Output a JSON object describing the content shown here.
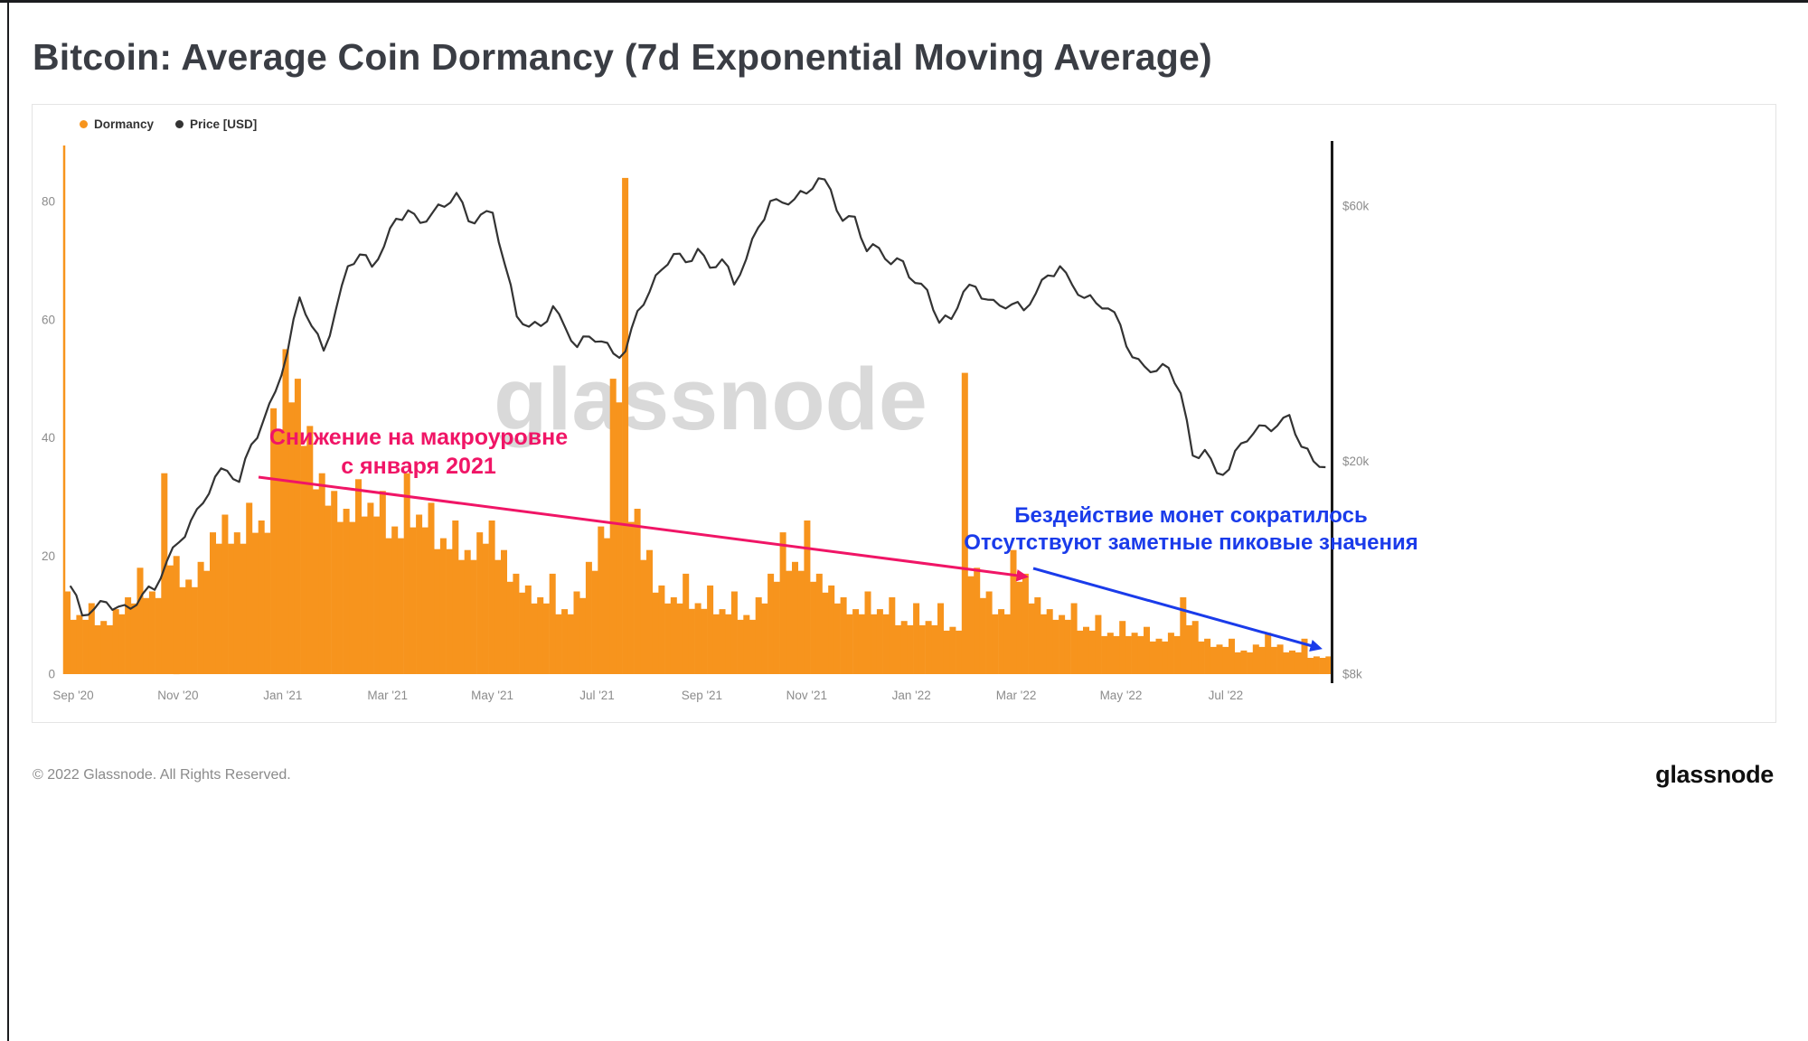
{
  "chart_data": {
    "type": "bar+line",
    "title": "Bitcoin: Average Coin Dormancy (7d Exponential Moving Average)",
    "x_tick_labels": [
      "Sep '20",
      "Nov '20",
      "Jan '21",
      "Mar '21",
      "May '21",
      "Jul '21",
      "Sep '21",
      "Nov '21",
      "Jan '22",
      "Mar '22",
      "May '22",
      "Jul '22"
    ],
    "x_resolution": "weekly samples, Sep 2020 to Sep 2022",
    "left_axis": {
      "series": "Dormancy",
      "ticks": [
        0,
        20,
        40,
        60,
        80
      ],
      "range": [
        0,
        90
      ],
      "grid": false
    },
    "right_axis": {
      "series": "Price [USD]",
      "scale": "log",
      "tick_labels": [
        "$60k",
        "$20k",
        "$8k"
      ],
      "tick_values": [
        60000,
        20000,
        8000
      ]
    },
    "legend_position": "top-left",
    "series": [
      {
        "name": "Dormancy",
        "type": "bar",
        "axis": "left",
        "color": "#F7941D",
        "values": [
          14,
          10,
          12,
          9,
          11,
          13,
          18,
          14,
          34,
          20,
          16,
          19,
          24,
          27,
          24,
          29,
          26,
          45,
          55,
          50,
          42,
          34,
          31,
          28,
          33,
          29,
          31,
          25,
          34,
          27,
          29,
          23,
          26,
          21,
          24,
          26,
          21,
          17,
          15,
          13,
          17,
          11,
          14,
          19,
          25,
          50,
          84,
          28,
          21,
          15,
          13,
          17,
          12,
          15,
          11,
          14,
          10,
          13,
          17,
          24,
          19,
          26,
          17,
          15,
          13,
          11,
          14,
          11,
          13,
          9,
          12,
          9,
          12,
          8,
          51,
          18,
          14,
          11,
          21,
          17,
          13,
          11,
          10,
          12,
          8,
          10,
          7,
          9,
          7,
          8,
          6,
          7,
          13,
          9,
          6,
          5,
          6,
          4,
          5,
          7,
          5,
          4,
          6,
          3,
          3
        ]
      },
      {
        "name": "Price [USD]",
        "type": "line",
        "axis": "right",
        "color": "#333333",
        "values": [
          11700,
          10300,
          10600,
          10900,
          10700,
          10600,
          11300,
          11500,
          13000,
          14100,
          15500,
          16700,
          18700,
          19200,
          18300,
          21500,
          23800,
          27000,
          32000,
          40500,
          35800,
          32200,
          38300,
          46300,
          48700,
          46200,
          50400,
          56800,
          58900,
          55800,
          58200,
          59800,
          63500,
          56200,
          57800,
          58300,
          46700,
          37300,
          35700,
          35800,
          39000,
          35600,
          32700,
          34200,
          33500,
          31800,
          32100,
          38200,
          41500,
          45600,
          48800,
          47100,
          49900,
          46000,
          47700,
          42800,
          47700,
          54700,
          61300,
          60900,
          61800,
          63300,
          67600,
          64400,
          56300,
          57300,
          49400,
          50100,
          46700,
          47300,
          43100,
          41800,
          36300,
          36900,
          41500,
          42400,
          40100,
          39100,
          39300,
          38300,
          41200,
          44500,
          46300,
          42800,
          40400,
          39500,
          38600,
          36000,
          31300,
          30100,
          29500,
          29900,
          26800,
          20500,
          21000,
          19000,
          19300,
          21600,
          22500,
          23300,
          23300,
          24400,
          21300,
          20000,
          19500
        ]
      }
    ]
  },
  "watermark": "glassnode",
  "annotations": {
    "pink": {
      "color": "#F01566",
      "line1": "Снижение на макроуровне",
      "line2": "с января 2021"
    },
    "blue": {
      "color": "#1A3BEA",
      "line1": "Бездействие монет сократилось",
      "line2": "Отсутствуют заметные пиковые значения"
    }
  },
  "footer": {
    "copyright": "© 2022 Glassnode. All Rights Reserved.",
    "logo": "glassnode"
  }
}
